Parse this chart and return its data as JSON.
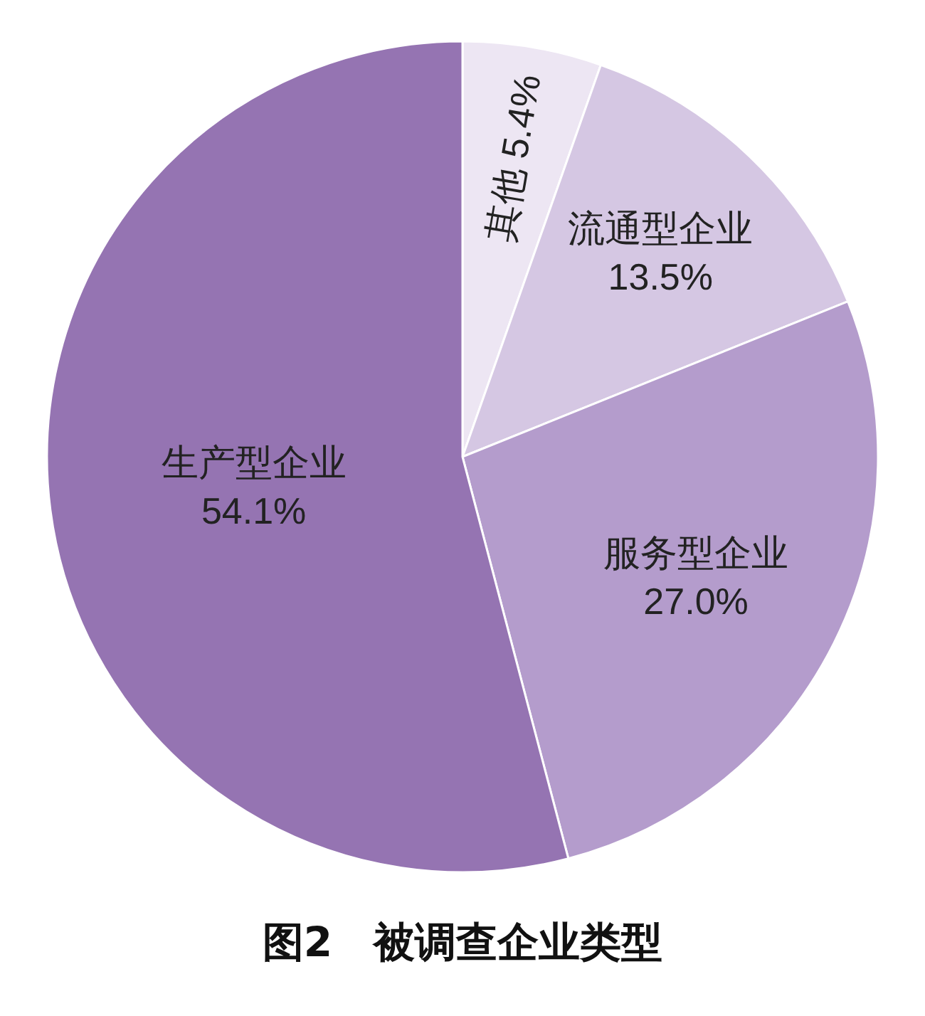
{
  "chart_data": {
    "type": "pie",
    "title": "图2　被调查企业类型",
    "categories": [
      "其他",
      "流通型企业",
      "服务型企业",
      "生产型企业"
    ],
    "values": [
      5.4,
      13.5,
      27.0,
      54.1
    ],
    "value_labels": [
      "5.4%",
      "13.5%",
      "27.0%",
      "54.1%"
    ],
    "colors": [
      "#ede6f3",
      "#d5c7e3",
      "#b49ccc",
      "#9574b2"
    ]
  }
}
